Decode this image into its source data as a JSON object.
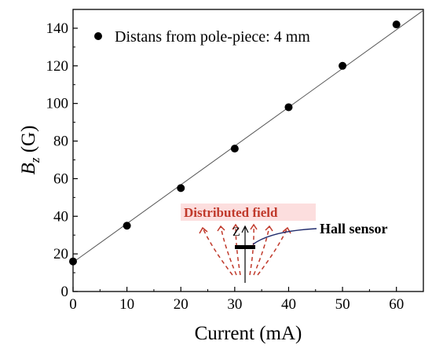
{
  "chart_data": {
    "type": "scatter",
    "xlabel": "Current (mA)",
    "ylabel_main": "B",
    "ylabel_sub": "z",
    "ylabel_unit": " (G)",
    "xlim": [
      0,
      65
    ],
    "ylim": [
      0,
      150
    ],
    "xticks": [
      0,
      10,
      20,
      30,
      40,
      50,
      60
    ],
    "yticks": [
      0,
      20,
      40,
      60,
      80,
      100,
      120,
      140
    ],
    "legend_position": "top-left",
    "series": [
      {
        "name": "Distans from pole-piece: 4 mm",
        "marker_color": "#000000",
        "x": [
          0,
          10,
          20,
          30,
          40,
          50,
          60
        ],
        "y": [
          16,
          35,
          55,
          76,
          98,
          120,
          142
        ]
      }
    ],
    "fit_line": {
      "color": "#555555",
      "x": [
        0,
        65
      ],
      "y": [
        15.5,
        149.5
      ]
    },
    "annotations": {
      "field_label": "Distributed field",
      "field_highlight": "#fcdede",
      "field_color": "#c0392b",
      "axis_letter": "Z",
      "sensor_label": "Hall sensor",
      "pointer_color": "#1f2a6b"
    }
  }
}
